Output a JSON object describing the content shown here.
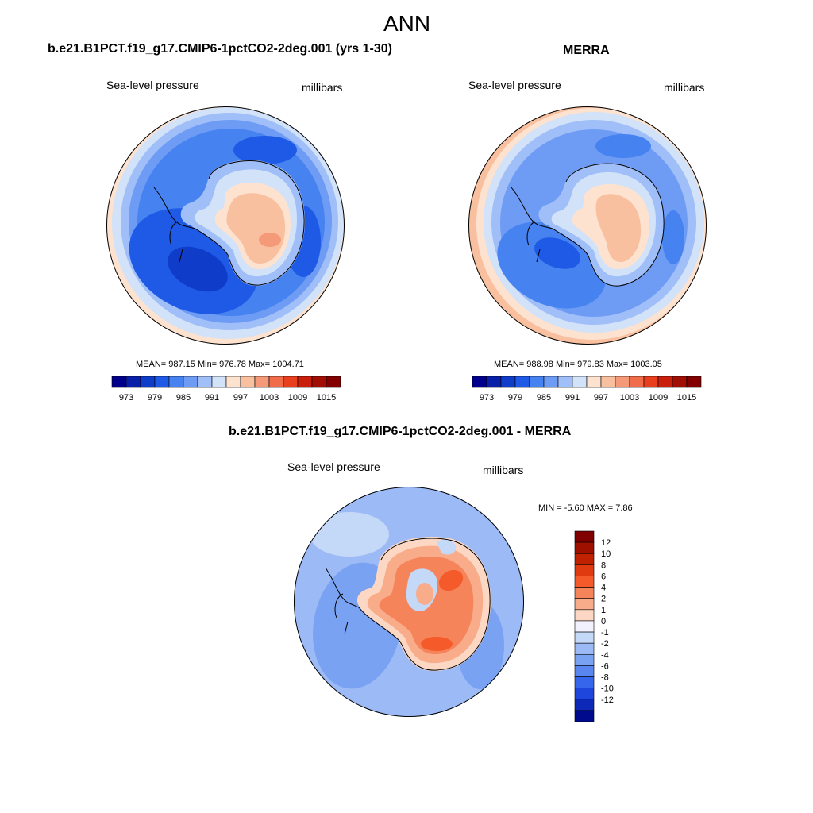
{
  "page_title": "ANN",
  "panels": {
    "model": {
      "heading": "b.e21.B1PCT.f19_g17.CMIP6-1pctCO2-2deg.001 (yrs 1-30)",
      "left_label": "Sea-level pressure",
      "right_label": "millibars",
      "stats": "MEAN= 987.15  Min= 976.78  Max= 1004.71"
    },
    "obs": {
      "heading": "MERRA",
      "left_label": "Sea-level pressure",
      "right_label": "millibars",
      "stats": "MEAN= 988.98  Min= 979.83  Max= 1003.05"
    },
    "diff": {
      "heading": "b.e21.B1PCT.f19_g17.CMIP6-1pctCO2-2deg.001 - MERRA",
      "left_label": "Sea-level pressure",
      "right_label": "millibars",
      "stats": "MIN =  -5.60 MAX =   7.86"
    }
  },
  "colorbar_top": {
    "colors": [
      "#00008c",
      "#0a1fa8",
      "#0f3cc8",
      "#1e5ae6",
      "#4682f0",
      "#6e9cf5",
      "#a0bef8",
      "#d2e2f8",
      "#fde2d0",
      "#f9c0a0",
      "#f59a78",
      "#f06c4a",
      "#e8401e",
      "#c8200c",
      "#a00e04",
      "#820000"
    ],
    "tick_labels": [
      "973",
      "979",
      "985",
      "991",
      "997",
      "1003",
      "1009",
      "1015"
    ]
  },
  "colorbar_diff": {
    "colors": [
      "#800000",
      "#a01000",
      "#c02200",
      "#e03a10",
      "#f55a2a",
      "#f5845a",
      "#f8ac8a",
      "#fcd8c4",
      "#f2f2ff",
      "#c4d8f8",
      "#9cbaf5",
      "#7aa2f2",
      "#5a86f0",
      "#3566ec",
      "#1e46dc",
      "#0e28b8",
      "#000a8c"
    ],
    "tick_labels": [
      "12",
      "10",
      "8",
      "6",
      "4",
      "2",
      "1",
      "0",
      "-1",
      "-2",
      "-4",
      "-6",
      "-8",
      "-10",
      "-12"
    ]
  }
}
